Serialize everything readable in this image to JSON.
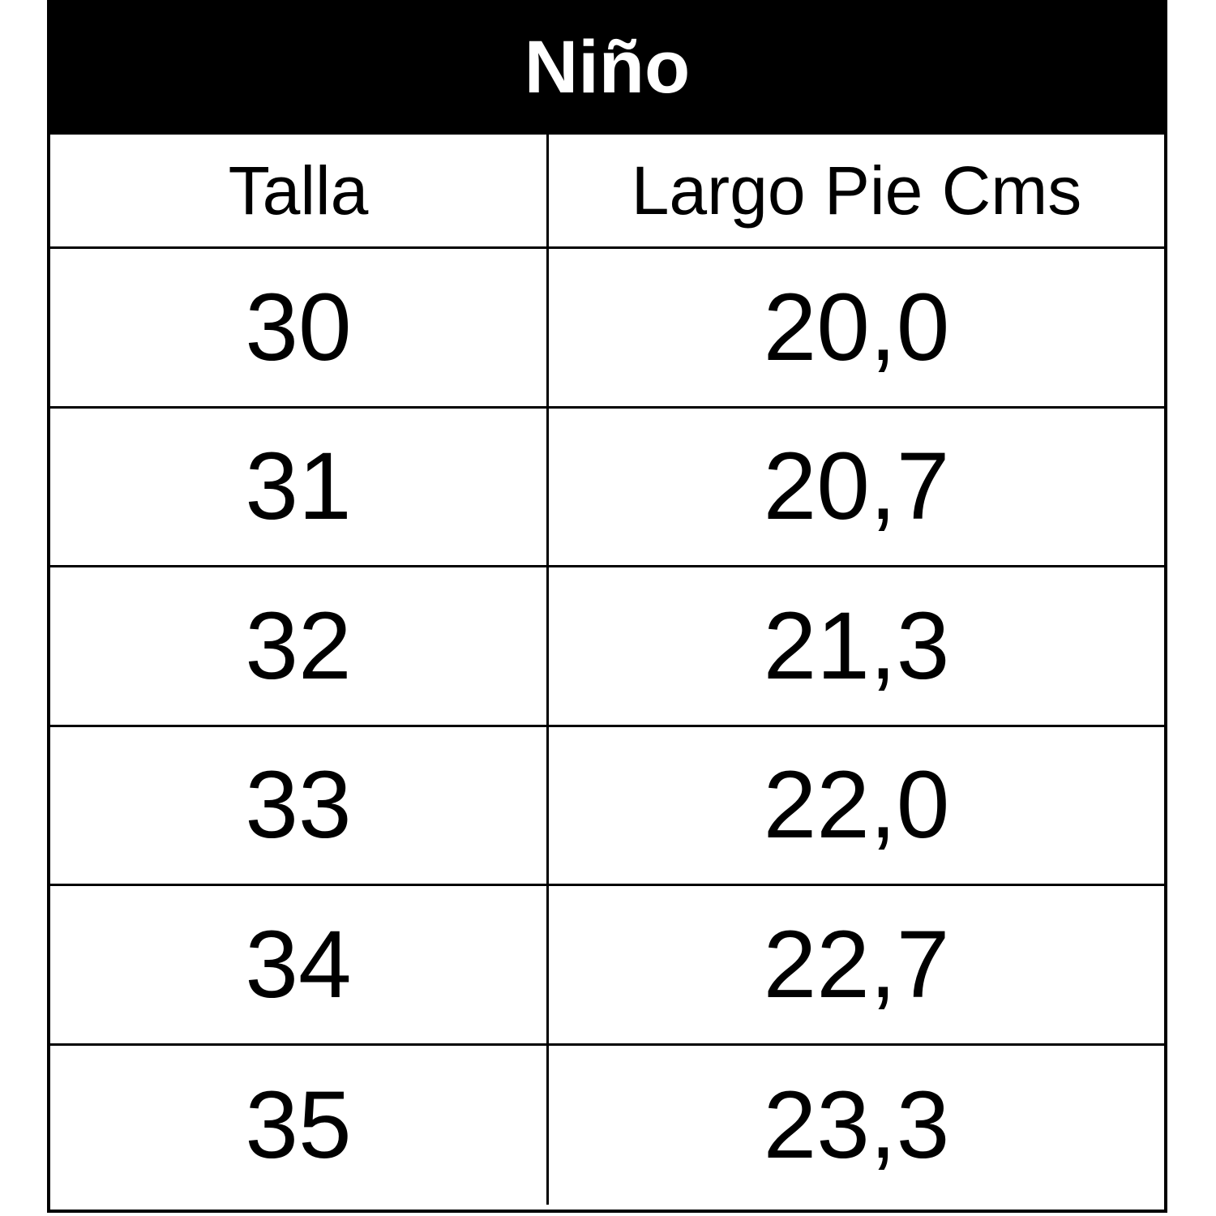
{
  "table": {
    "title": "Niño",
    "header": [
      "Talla",
      "Largo Pie Cms"
    ],
    "rows": [
      [
        "30",
        "20,0"
      ],
      [
        "31",
        "20,7"
      ],
      [
        "32",
        "21,3"
      ],
      [
        "33",
        "22,0"
      ],
      [
        "34",
        "22,7"
      ],
      [
        "35",
        "23,3"
      ]
    ]
  }
}
